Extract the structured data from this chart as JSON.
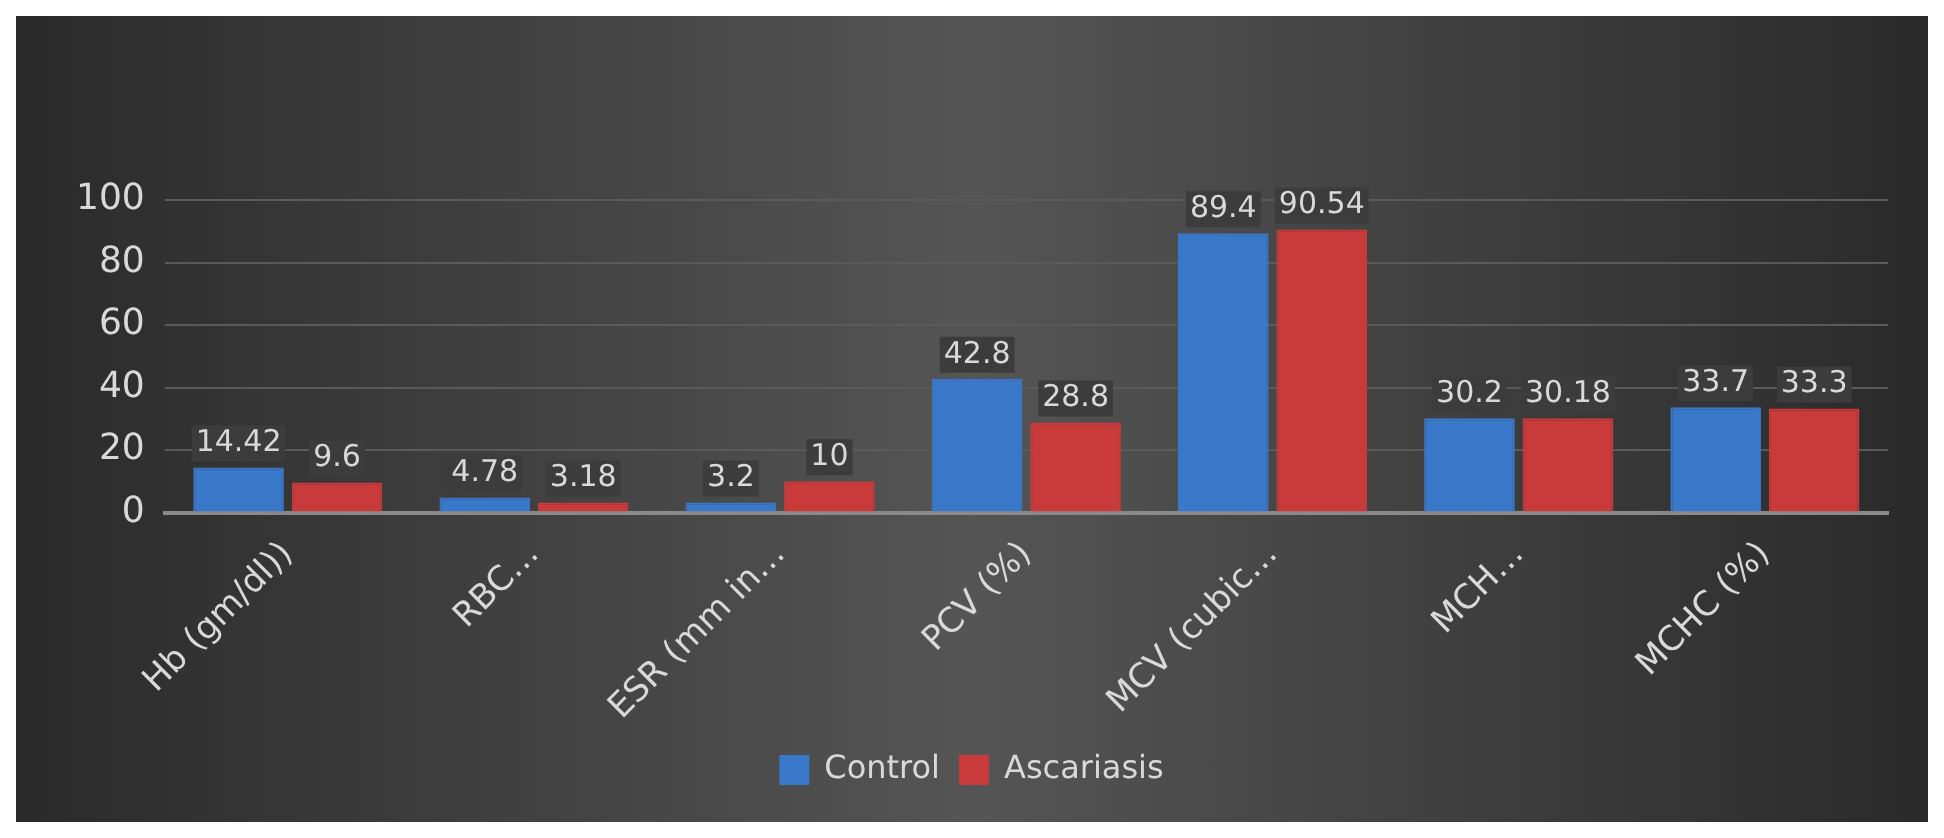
{
  "chart_data": {
    "type": "bar",
    "categories": [
      "Hb (gm/dl))",
      "RBC…",
      "ESR (mm in…",
      "PCV (%)",
      "MCV (cubic…",
      "MCH…",
      "MCHC (%)"
    ],
    "series": [
      {
        "name": "Control",
        "color": "#3a78c9",
        "values": [
          14.42,
          4.78,
          3.2,
          42.8,
          89.4,
          30.2,
          33.7
        ]
      },
      {
        "name": "Ascariasis",
        "color": "#c93a3a",
        "values": [
          9.6,
          3.18,
          10,
          28.8,
          90.54,
          30.18,
          33.3
        ]
      }
    ],
    "ylim": [
      0,
      100
    ],
    "yticks": [
      0,
      20,
      40,
      60,
      80,
      100
    ],
    "grid": "y",
    "legend": "bottom",
    "data_labels": true
  }
}
